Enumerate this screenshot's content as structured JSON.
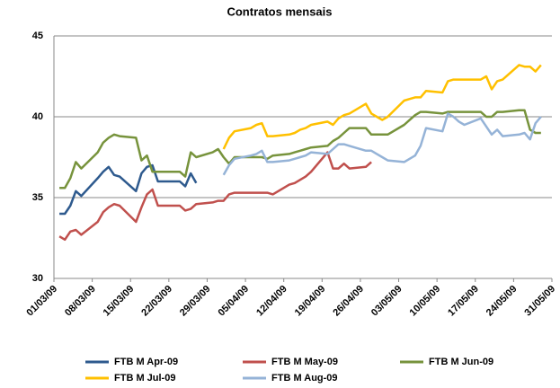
{
  "chart_data": {
    "type": "line",
    "title": "Contratos mensais",
    "x": [
      "02/03/09",
      "03/03/09",
      "04/03/09",
      "05/03/09",
      "06/03/09",
      "09/03/09",
      "10/03/09",
      "11/03/09",
      "12/03/09",
      "13/03/09",
      "16/03/09",
      "17/03/09",
      "18/03/09",
      "19/03/09",
      "20/03/09",
      "23/03/09",
      "24/03/09",
      "25/03/09",
      "26/03/09",
      "27/03/09",
      "30/03/09",
      "31/03/09",
      "01/04/09",
      "02/04/09",
      "03/04/09",
      "06/04/09",
      "07/04/09",
      "08/04/09",
      "09/04/09",
      "10/04/09",
      "13/04/09",
      "14/04/09",
      "15/04/09",
      "16/04/09",
      "17/04/09",
      "20/04/09",
      "21/04/09",
      "22/04/09",
      "23/04/09",
      "24/04/09",
      "27/04/09",
      "28/04/09",
      "29/04/09",
      "30/04/09",
      "01/05/09",
      "04/05/09",
      "05/05/09",
      "06/05/09",
      "07/05/09",
      "08/05/09",
      "11/05/09",
      "12/05/09",
      "13/05/09",
      "14/05/09",
      "15/05/09",
      "18/05/09",
      "19/05/09",
      "20/05/09",
      "21/05/09",
      "22/05/09",
      "25/05/09",
      "26/05/09",
      "27/05/09",
      "28/05/09",
      "29/05/09"
    ],
    "series": [
      {
        "name": "FTB M Apr-09",
        "color": "#2e5a8e",
        "values": [
          34.0,
          34.0,
          34.5,
          35.4,
          35.1,
          36.2,
          36.6,
          36.9,
          36.4,
          36.3,
          35.4,
          36.5,
          36.9,
          37.0,
          36.0,
          36.0,
          36.0,
          35.7,
          36.5,
          35.9,
          null,
          null,
          null,
          null,
          null,
          null,
          null,
          null,
          null,
          null,
          null,
          null,
          null,
          null,
          null,
          null,
          null,
          null,
          null,
          null,
          null,
          null,
          null,
          null,
          null,
          null,
          null,
          null,
          null,
          null,
          null,
          null,
          null,
          null,
          null,
          null,
          null,
          null,
          null,
          null,
          null,
          null,
          null,
          null,
          null
        ]
      },
      {
        "name": "FTB M May-09",
        "color": "#c0504d",
        "values": [
          32.6,
          32.4,
          32.9,
          33.0,
          32.7,
          33.5,
          34.1,
          34.4,
          34.6,
          34.5,
          33.5,
          34.4,
          35.2,
          35.5,
          34.5,
          34.5,
          34.5,
          34.2,
          34.3,
          34.6,
          34.7,
          34.8,
          34.8,
          35.2,
          35.3,
          35.3,
          35.3,
          35.3,
          35.3,
          35.2,
          35.8,
          35.9,
          36.1,
          36.3,
          36.6,
          37.8,
          36.8,
          36.8,
          37.1,
          36.8,
          36.9,
          37.2,
          null,
          null,
          null,
          null,
          null,
          null,
          null,
          null,
          null,
          null,
          null,
          null,
          null,
          null,
          null,
          null,
          null,
          null,
          null,
          null,
          null,
          null,
          null
        ]
      },
      {
        "name": "FTB M Jun-09",
        "color": "#77933c",
        "values": [
          35.6,
          35.6,
          36.2,
          37.2,
          36.8,
          37.8,
          38.4,
          38.7,
          38.9,
          38.8,
          38.7,
          37.3,
          37.6,
          36.6,
          36.6,
          36.6,
          36.6,
          36.3,
          37.8,
          37.5,
          37.8,
          38.0,
          37.5,
          37.1,
          37.5,
          37.5,
          37.5,
          37.5,
          37.4,
          37.6,
          37.7,
          37.8,
          37.9,
          38.0,
          38.1,
          38.2,
          38.5,
          38.7,
          39.0,
          39.3,
          39.3,
          38.9,
          38.9,
          38.9,
          38.9,
          39.5,
          39.8,
          40.1,
          40.3,
          40.3,
          40.2,
          40.3,
          40.3,
          40.3,
          40.3,
          40.3,
          40.0,
          40.0,
          40.3,
          40.3,
          40.4,
          40.4,
          39.2,
          39.0,
          39.0
        ]
      },
      {
        "name": "FTB M Jul-09",
        "color": "#ffc000",
        "values": [
          null,
          null,
          null,
          null,
          null,
          null,
          null,
          null,
          null,
          null,
          null,
          null,
          null,
          null,
          null,
          null,
          null,
          null,
          null,
          null,
          null,
          null,
          38.0,
          38.7,
          39.1,
          39.3,
          39.5,
          39.6,
          38.8,
          38.8,
          38.9,
          39.0,
          39.2,
          39.3,
          39.5,
          39.7,
          39.5,
          39.9,
          40.1,
          40.2,
          40.8,
          40.2,
          40.0,
          39.8,
          40.0,
          41.0,
          41.1,
          41.2,
          41.2,
          41.6,
          41.5,
          42.2,
          42.3,
          42.3,
          42.3,
          42.3,
          42.5,
          41.7,
          42.2,
          42.3,
          43.2,
          43.1,
          43.1,
          42.8,
          43.2
        ]
      },
      {
        "name": "FTB M Aug-09",
        "color": "#95b3d7",
        "values": [
          null,
          null,
          null,
          null,
          null,
          null,
          null,
          null,
          null,
          null,
          null,
          null,
          null,
          null,
          null,
          null,
          null,
          null,
          null,
          null,
          null,
          null,
          36.4,
          37.0,
          37.4,
          37.6,
          37.7,
          37.9,
          37.2,
          37.2,
          37.3,
          37.4,
          37.5,
          37.6,
          37.8,
          37.7,
          38.0,
          38.3,
          38.3,
          38.2,
          37.9,
          37.9,
          37.7,
          37.5,
          37.3,
          37.2,
          37.4,
          37.6,
          38.2,
          39.3,
          39.1,
          40.2,
          40.0,
          39.7,
          39.5,
          39.9,
          39.4,
          38.9,
          39.2,
          38.8,
          38.9,
          39.0,
          38.6,
          39.6,
          40.0
        ]
      }
    ],
    "xlim": [
      "01/03/09",
      "31/05/09"
    ],
    "xticks": [
      "01/03/09",
      "08/03/09",
      "15/03/09",
      "22/03/09",
      "29/03/09",
      "05/04/09",
      "12/04/09",
      "19/04/09",
      "26/04/09",
      "03/05/09",
      "10/05/09",
      "17/05/09",
      "24/05/09",
      "31/05/09"
    ],
    "ylim": [
      30,
      45
    ],
    "yticks": [
      30,
      35,
      40,
      45
    ],
    "grid": true,
    "legend": "bottom"
  }
}
